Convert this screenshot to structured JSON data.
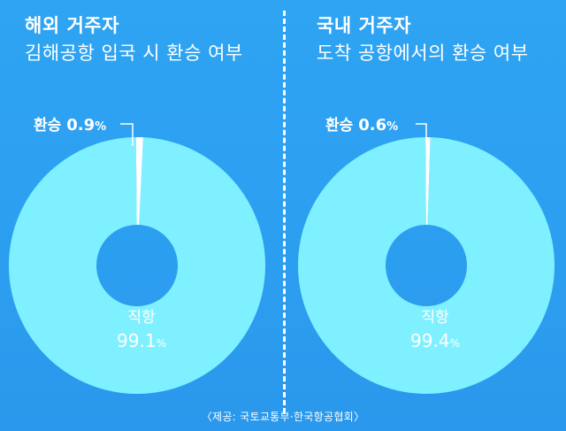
{
  "chart_data": [
    {
      "type": "pie",
      "donut": true,
      "title_line1": "해외 거주자",
      "title_line2": "김해공항 입국 시 환승 여부",
      "slices": [
        {
          "label": "직항",
          "value": 99.1,
          "color": "#7ff0ff"
        },
        {
          "label": "환승",
          "value": 0.9,
          "color": "#ffffff"
        }
      ],
      "callout": {
        "label": "환승",
        "value": "0.9",
        "unit": "%"
      },
      "center": {
        "label": "직항",
        "value": "99.1",
        "unit": "%"
      }
    },
    {
      "type": "pie",
      "donut": true,
      "title_line1": "국내 거주자",
      "title_line2": "도착 공항에서의 환승 여부",
      "slices": [
        {
          "label": "직항",
          "value": 99.4,
          "color": "#7ff0ff"
        },
        {
          "label": "환승",
          "value": 0.6,
          "color": "#ffffff"
        }
      ],
      "callout": {
        "label": "환승",
        "value": "0.6",
        "unit": "%"
      },
      "center": {
        "label": "직항",
        "value": "99.4",
        "unit": "%"
      }
    }
  ],
  "source": "〈제공: 국토교통부·한국항공협회〉"
}
